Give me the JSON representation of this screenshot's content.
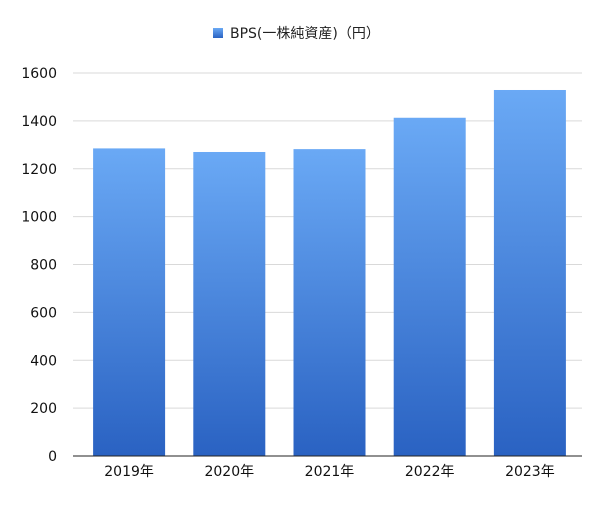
{
  "chart_data": {
    "type": "bar",
    "categories": [
      "2019年",
      "2020年",
      "2021年",
      "2022年",
      "2023年"
    ],
    "series": [
      {
        "name": "BPS(一株純資産)（円）",
        "values": [
          1285,
          1270,
          1282,
          1413,
          1529
        ]
      }
    ],
    "ylim": [
      0,
      1600
    ],
    "yticks": [
      0,
      200,
      400,
      600,
      800,
      1000,
      1200,
      1400,
      1600
    ],
    "grid": true,
    "legend_position": "top-center",
    "colors": {
      "bar_top": "#6aa9f5",
      "bar_bottom": "#2a62c2",
      "grid": "#d9d9d9"
    }
  }
}
